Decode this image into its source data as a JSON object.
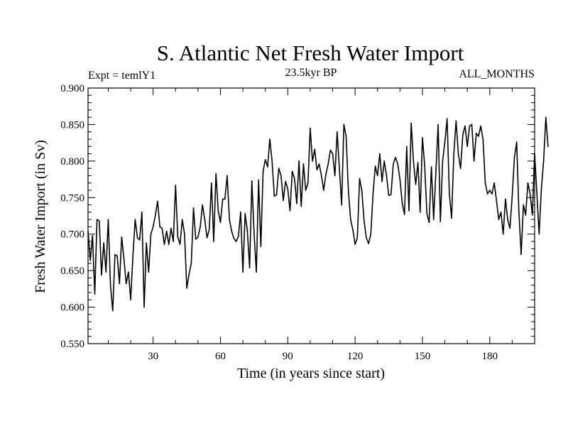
{
  "chart_data": {
    "type": "line",
    "title": "S. Atlantic Net Fresh Water Import",
    "subtitle": "23.5kyr BP",
    "left_label": "Expt = temlY1",
    "right_label": "ALL_MONTHS",
    "xlabel": "Time (in years since start)",
    "ylabel": "Fresh Water Import (in Sv)",
    "xlim": [
      1,
      200
    ],
    "ylim": [
      0.55,
      0.9
    ],
    "x_ticks": [
      30,
      60,
      90,
      120,
      150,
      180
    ],
    "y_ticks": [
      0.55,
      0.6,
      0.65,
      0.7,
      0.75,
      0.8,
      0.85,
      0.9
    ],
    "y_tick_labels": [
      "0.550",
      "0.600",
      "0.650",
      "0.700",
      "0.750",
      "0.800",
      "0.850",
      "0.900"
    ],
    "series": [
      {
        "name": "Fresh Water Import",
        "x_start": 1,
        "x_step": 1,
        "values": [
          0.704,
          0.664,
          0.698,
          0.618,
          0.72,
          0.718,
          0.644,
          0.688,
          0.648,
          0.72,
          0.63,
          0.595,
          0.672,
          0.67,
          0.632,
          0.696,
          0.666,
          0.632,
          0.648,
          0.61,
          0.67,
          0.72,
          0.695,
          0.692,
          0.73,
          0.6,
          0.688,
          0.648,
          0.7,
          0.71,
          0.726,
          0.745,
          0.71,
          0.708,
          0.686,
          0.704,
          0.686,
          0.708,
          0.69,
          0.767,
          0.696,
          0.686,
          0.72,
          0.7,
          0.626,
          0.645,
          0.66,
          0.736,
          0.693,
          0.696,
          0.71,
          0.74,
          0.72,
          0.695,
          0.706,
          0.77,
          0.69,
          0.783,
          0.732,
          0.716,
          0.748,
          0.748,
          0.78,
          0.72,
          0.704,
          0.694,
          0.69,
          0.697,
          0.73,
          0.648,
          0.728,
          0.704,
          0.654,
          0.773,
          0.7,
          0.648,
          0.774,
          0.683,
          0.786,
          0.802,
          0.792,
          0.83,
          0.8,
          0.752,
          0.754,
          0.79,
          0.78,
          0.746,
          0.772,
          0.762,
          0.732,
          0.786,
          0.776,
          0.742,
          0.8,
          0.738,
          0.796,
          0.76,
          0.77,
          0.845,
          0.8,
          0.816,
          0.788,
          0.796,
          0.78,
          0.76,
          0.782,
          0.796,
          0.815,
          0.81,
          0.78,
          0.84,
          0.79,
          0.74,
          0.85,
          0.834,
          0.76,
          0.72,
          0.706,
          0.686,
          0.695,
          0.776,
          0.76,
          0.718,
          0.695,
          0.687,
          0.7,
          0.755,
          0.793,
          0.78,
          0.81,
          0.772,
          0.8,
          0.78,
          0.753,
          0.754,
          0.796,
          0.805,
          0.796,
          0.775,
          0.742,
          0.727,
          0.82,
          0.732,
          0.852,
          0.8,
          0.768,
          0.798,
          0.73,
          0.832,
          0.794,
          0.728,
          0.716,
          0.792,
          0.72,
          0.785,
          0.85,
          0.717,
          0.8,
          0.826,
          0.858,
          0.755,
          0.722,
          0.81,
          0.855,
          0.81,
          0.79,
          0.836,
          0.848,
          0.82,
          0.848,
          0.85,
          0.8,
          0.838,
          0.834,
          0.848,
          0.83,
          0.77,
          0.755,
          0.76,
          0.755,
          0.77,
          0.746,
          0.72,
          0.73,
          0.7,
          0.748,
          0.72,
          0.708,
          0.752,
          0.805,
          0.826,
          0.73,
          0.672,
          0.74,
          0.726,
          0.77,
          0.755,
          0.726,
          0.81,
          0.756,
          0.7,
          0.762,
          0.8,
          0.86,
          0.82
        ]
      }
    ]
  }
}
